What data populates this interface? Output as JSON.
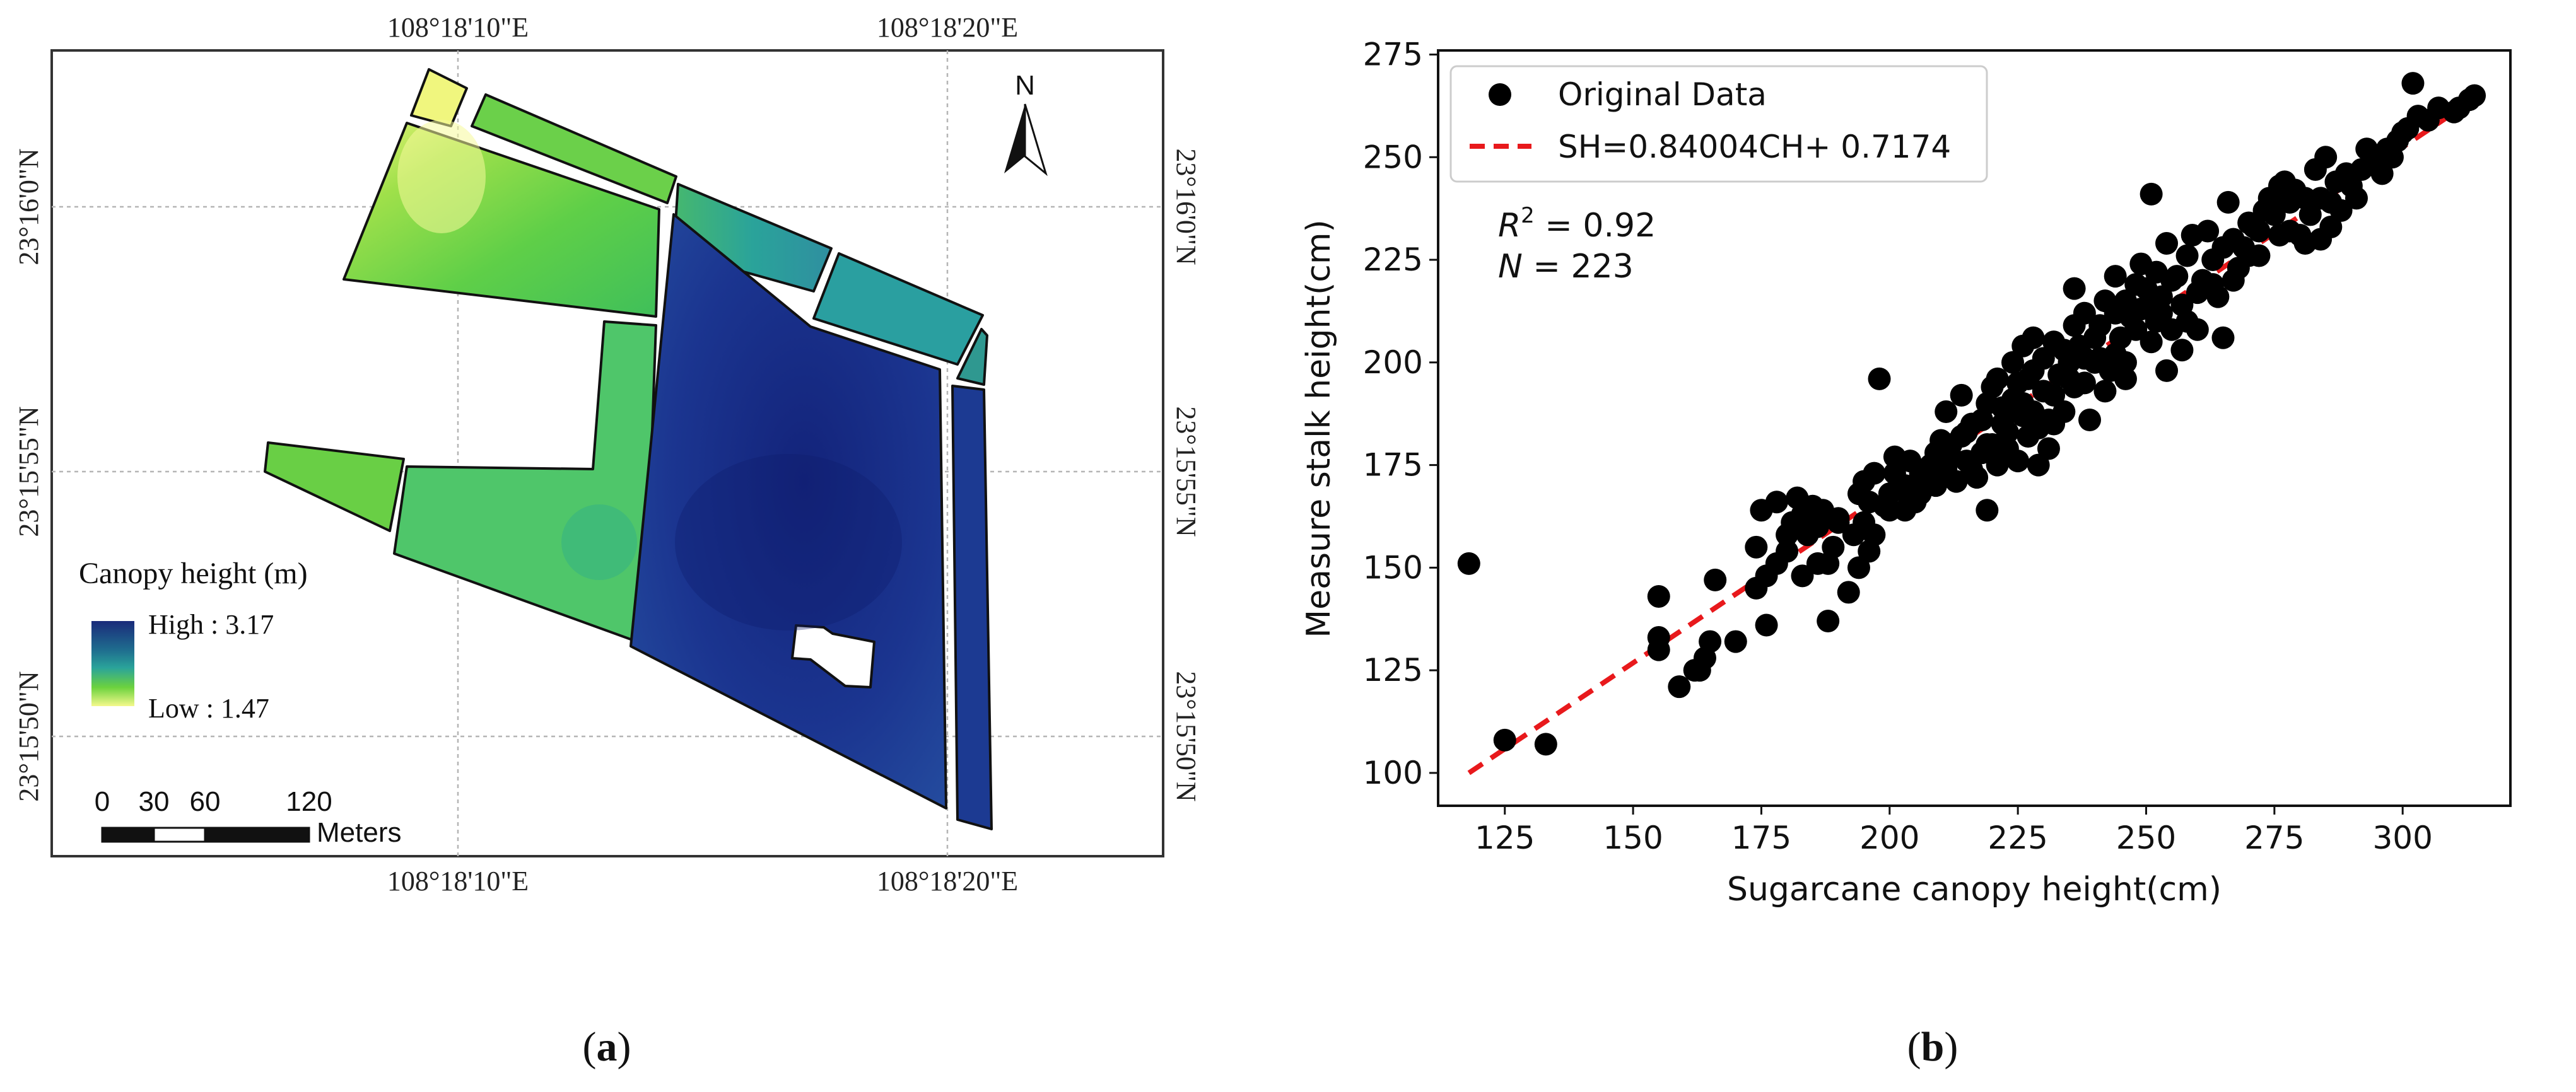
{
  "panel_a": {
    "caption": "(a)",
    "caption_letter": "a",
    "coord_top_left": "108°18'10\"E",
    "coord_top_right": "108°18'20\"E",
    "coord_bottom_left": "108°18'10\"E",
    "coord_bottom_right": "108°18'20\"E",
    "coord_left_top": "23°16'0\"N",
    "coord_left_mid": "23°15'55\"N",
    "coord_left_bottom": "23°15'50\"N",
    "coord_right_top": "23°16'0\"N",
    "coord_right_mid": "23°15'55\"N",
    "coord_right_bottom": "23°15'50\"N",
    "north_label": "N",
    "legend_title": "Canopy height (m)",
    "legend_high": "High : 3.17",
    "legend_low": "Low : 1.47",
    "scale_ticks": [
      "0",
      "30",
      "60",
      "120"
    ],
    "scale_unit": "Meters",
    "colors": {
      "high": "#1a2a7a",
      "mid": "#2aa39a",
      "low_mid": "#6cd23e",
      "low": "#f4f98c"
    }
  },
  "panel_b": {
    "caption": "(b)",
    "caption_letter": "b",
    "r2_label": "R",
    "r2_sup": "2",
    "r2_value": " = 0.92",
    "n_label": "N",
    "n_value": " = 223"
  },
  "chart_data": {
    "type": "scatter",
    "title": "",
    "xlabel": "Sugarcane canopy height(cm)",
    "ylabel": "Measure stalk height(cm)",
    "xlim": [
      112,
      321
    ],
    "ylim": [
      92,
      276
    ],
    "xticks": [
      125,
      150,
      175,
      200,
      225,
      250,
      275,
      300
    ],
    "yticks": [
      100,
      125,
      150,
      175,
      200,
      225,
      250,
      275
    ],
    "legend": [
      "Original Data",
      "SH=0.84004CH+ 0.7174"
    ],
    "legend_position": "top-left",
    "fit_line": {
      "name": "SH=0.84004CH+ 0.7174",
      "x": [
        118,
        315
      ],
      "y": [
        100,
        265
      ],
      "color": "#e8191c",
      "style": "dashed"
    },
    "series": [
      {
        "name": "Original Data",
        "color": "#000000",
        "points": [
          [
            118,
            151
          ],
          [
            125,
            108
          ],
          [
            133,
            107
          ],
          [
            155,
            143
          ],
          [
            155,
            133
          ],
          [
            155,
            130
          ],
          [
            159,
            121
          ],
          [
            162,
            125
          ],
          [
            163,
            125
          ],
          [
            164,
            128
          ],
          [
            165,
            132
          ],
          [
            166,
            147
          ],
          [
            170,
            132
          ],
          [
            174,
            145
          ],
          [
            174,
            155
          ],
          [
            175,
            164
          ],
          [
            176,
            136
          ],
          [
            176,
            148
          ],
          [
            178,
            151
          ],
          [
            180,
            154
          ],
          [
            181,
            161
          ],
          [
            182,
            167
          ],
          [
            183,
            163
          ],
          [
            184,
            158
          ],
          [
            185,
            165
          ],
          [
            186,
            151
          ],
          [
            186,
            160
          ],
          [
            187,
            164
          ],
          [
            188,
            137
          ],
          [
            189,
            155
          ],
          [
            190,
            162
          ],
          [
            192,
            144
          ],
          [
            193,
            158
          ],
          [
            194,
            150
          ],
          [
            194,
            168
          ],
          [
            195,
            161
          ],
          [
            195,
            171
          ],
          [
            196,
            154
          ],
          [
            197,
            158
          ],
          [
            197,
            173
          ],
          [
            198,
            196
          ],
          [
            199,
            165
          ],
          [
            200,
            164
          ],
          [
            200,
            168
          ],
          [
            201,
            173
          ],
          [
            201,
            177
          ],
          [
            202,
            169
          ],
          [
            203,
            170
          ],
          [
            204,
            176
          ],
          [
            205,
            166
          ],
          [
            206,
            168
          ],
          [
            207,
            172
          ],
          [
            208,
            175
          ],
          [
            209,
            170
          ],
          [
            210,
            179
          ],
          [
            210,
            181
          ],
          [
            211,
            188
          ],
          [
            211,
            174
          ],
          [
            212,
            177
          ],
          [
            213,
            171
          ],
          [
            214,
            182
          ],
          [
            214,
            192
          ],
          [
            215,
            176
          ],
          [
            215,
            183
          ],
          [
            216,
            185
          ],
          [
            217,
            172
          ],
          [
            218,
            178
          ],
          [
            218,
            186
          ],
          [
            219,
            164
          ],
          [
            219,
            180
          ],
          [
            219,
            190
          ],
          [
            220,
            194
          ],
          [
            221,
            196
          ],
          [
            221,
            175
          ],
          [
            222,
            185
          ],
          [
            222,
            189
          ],
          [
            223,
            179
          ],
          [
            223,
            183
          ],
          [
            224,
            191
          ],
          [
            224,
            200
          ],
          [
            225,
            176
          ],
          [
            225,
            195
          ],
          [
            226,
            204
          ],
          [
            226,
            187
          ],
          [
            227,
            182
          ],
          [
            227,
            196
          ],
          [
            228,
            206
          ],
          [
            228,
            188
          ],
          [
            229,
            175
          ],
          [
            229,
            184
          ],
          [
            230,
            193
          ],
          [
            230,
            201
          ],
          [
            231,
            186
          ],
          [
            231,
            179
          ],
          [
            232,
            205
          ],
          [
            232,
            192
          ],
          [
            233,
            197
          ],
          [
            234,
            188
          ],
          [
            234,
            203
          ],
          [
            235,
            196
          ],
          [
            235,
            200
          ],
          [
            236,
            218
          ],
          [
            236,
            209
          ],
          [
            237,
            204
          ],
          [
            238,
            195
          ],
          [
            238,
            212
          ],
          [
            239,
            186
          ],
          [
            240,
            200
          ],
          [
            240,
            206
          ],
          [
            241,
            209
          ],
          [
            242,
            193
          ],
          [
            242,
            215
          ],
          [
            243,
            198
          ],
          [
            244,
            212
          ],
          [
            244,
            202
          ],
          [
            245,
            206
          ],
          [
            246,
            196
          ],
          [
            246,
            215
          ],
          [
            247,
            211
          ],
          [
            248,
            208
          ],
          [
            248,
            219
          ],
          [
            249,
            213
          ],
          [
            250,
            218
          ],
          [
            251,
            241
          ],
          [
            251,
            205
          ],
          [
            252,
            210
          ],
          [
            252,
            222
          ],
          [
            253,
            216
          ],
          [
            254,
            198
          ],
          [
            254,
            229
          ],
          [
            255,
            208
          ],
          [
            256,
            221
          ],
          [
            257,
            214
          ],
          [
            258,
            226
          ],
          [
            258,
            210
          ],
          [
            259,
            231
          ],
          [
            260,
            217
          ],
          [
            261,
            220
          ],
          [
            262,
            232
          ],
          [
            263,
            225
          ],
          [
            264,
            216
          ],
          [
            265,
            206
          ],
          [
            265,
            228
          ],
          [
            266,
            239
          ],
          [
            267,
            220
          ],
          [
            268,
            223
          ],
          [
            269,
            228
          ],
          [
            270,
            234
          ],
          [
            271,
            233
          ],
          [
            272,
            226
          ],
          [
            273,
            237
          ],
          [
            274,
            240
          ],
          [
            275,
            236
          ],
          [
            276,
            231
          ],
          [
            277,
            244
          ],
          [
            278,
            239
          ],
          [
            279,
            242
          ],
          [
            280,
            231
          ],
          [
            281,
            229
          ],
          [
            282,
            236
          ],
          [
            283,
            247
          ],
          [
            284,
            240
          ],
          [
            285,
            250
          ],
          [
            286,
            239
          ],
          [
            287,
            244
          ],
          [
            288,
            237
          ],
          [
            290,
            243
          ],
          [
            292,
            247
          ],
          [
            293,
            252
          ],
          [
            295,
            248
          ],
          [
            296,
            246
          ],
          [
            298,
            250
          ],
          [
            300,
            256
          ],
          [
            302,
            268
          ],
          [
            305,
            259
          ],
          [
            307,
            262
          ],
          [
            310,
            261
          ],
          [
            311,
            262
          ],
          [
            313,
            264
          ],
          [
            314,
            265
          ],
          [
            178,
            166
          ],
          [
            180,
            158
          ],
          [
            183,
            148
          ],
          [
            188,
            151
          ],
          [
            190,
            161
          ],
          [
            196,
            166
          ],
          [
            203,
            164
          ],
          [
            206,
            173
          ],
          [
            209,
            178
          ],
          [
            212,
            180
          ],
          [
            216,
            174
          ],
          [
            220,
            180
          ],
          [
            224,
            188
          ],
          [
            226,
            190
          ],
          [
            228,
            198
          ],
          [
            232,
            185
          ],
          [
            236,
            194
          ],
          [
            238,
            201
          ],
          [
            241,
            201
          ],
          [
            244,
            221
          ],
          [
            246,
            200
          ],
          [
            249,
            224
          ],
          [
            251,
            214
          ],
          [
            253,
            212
          ],
          [
            255,
            220
          ],
          [
            257,
            203
          ],
          [
            260,
            208
          ],
          [
            263,
            219
          ],
          [
            267,
            230
          ],
          [
            270,
            226
          ],
          [
            272,
            232
          ],
          [
            276,
            243
          ],
          [
            278,
            232
          ],
          [
            281,
            240
          ],
          [
            284,
            230
          ],
          [
            286,
            233
          ],
          [
            289,
            246
          ],
          [
            291,
            240
          ],
          [
            294,
            249
          ],
          [
            297,
            252
          ],
          [
            299,
            254
          ],
          [
            301,
            257
          ],
          [
            303,
            260
          ]
        ]
      }
    ]
  }
}
